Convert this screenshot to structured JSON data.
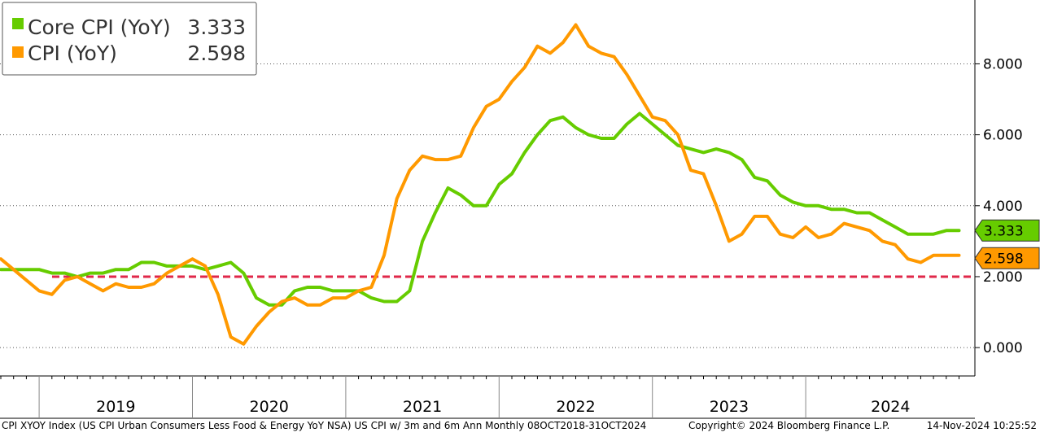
{
  "chart_data": {
    "type": "line",
    "x_start": "2018-10",
    "x_end": "2024-10",
    "series": [
      {
        "name": "Core CPI (YoY)",
        "last_value": "3.333",
        "color": "#66cc00",
        "values": [
          2.2,
          2.2,
          2.2,
          2.2,
          2.1,
          2.1,
          2.0,
          2.1,
          2.1,
          2.2,
          2.2,
          2.4,
          2.4,
          2.3,
          2.3,
          2.3,
          2.2,
          2.3,
          2.4,
          2.1,
          1.4,
          1.2,
          1.2,
          1.6,
          1.7,
          1.7,
          1.6,
          1.6,
          1.6,
          1.4,
          1.3,
          1.3,
          1.6,
          3.0,
          3.8,
          4.5,
          4.3,
          4.0,
          4.0,
          4.6,
          4.9,
          5.5,
          6.0,
          6.4,
          6.5,
          6.2,
          6.0,
          5.9,
          5.9,
          6.3,
          6.6,
          6.3,
          6.0,
          5.7,
          5.6,
          5.5,
          5.6,
          5.5,
          5.3,
          4.8,
          4.7,
          4.3,
          4.1,
          4.0,
          4.0,
          3.9,
          3.9,
          3.8,
          3.8,
          3.6,
          3.4,
          3.2,
          3.2,
          3.2,
          3.3,
          3.3
        ]
      },
      {
        "name": "CPI (YoY)",
        "last_value": "2.598",
        "color": "#ff9900",
        "values": [
          2.5,
          2.2,
          1.9,
          1.6,
          1.5,
          1.9,
          2.0,
          1.8,
          1.6,
          1.8,
          1.7,
          1.7,
          1.8,
          2.1,
          2.3,
          2.5,
          2.3,
          1.5,
          0.3,
          0.1,
          0.6,
          1.0,
          1.3,
          1.4,
          1.2,
          1.2,
          1.4,
          1.4,
          1.6,
          1.7,
          2.6,
          4.2,
          5.0,
          5.4,
          5.3,
          5.3,
          5.4,
          6.2,
          6.8,
          7.0,
          7.5,
          7.9,
          8.5,
          8.3,
          8.6,
          9.1,
          8.5,
          8.3,
          8.2,
          7.7,
          7.1,
          6.5,
          6.4,
          6.0,
          5.0,
          4.9,
          4.0,
          3.0,
          3.2,
          3.7,
          3.7,
          3.2,
          3.1,
          3.4,
          3.1,
          3.2,
          3.5,
          3.4,
          3.3,
          3.0,
          2.9,
          2.5,
          2.4,
          2.6,
          2.6,
          2.6
        ]
      }
    ],
    "reference_line": {
      "value": 2.0,
      "color": "#e0284a",
      "style": "dashed"
    },
    "y_ticks": [
      "0.000",
      "2.000",
      "4.000",
      "6.000",
      "8.000"
    ],
    "y_tick_values": [
      0,
      2,
      4,
      6,
      8
    ],
    "ylim": [
      -0.8,
      9.8
    ],
    "year_labels": [
      "2019",
      "2020",
      "2021",
      "2022",
      "2023",
      "2024"
    ],
    "grid": true,
    "legend_position": "top-left",
    "background": "#ffffff"
  },
  "legend": {
    "items": [
      {
        "label": "Core CPI (YoY)",
        "value": "3.333"
      },
      {
        "label": "CPI (YoY)",
        "value": "2.598"
      }
    ]
  },
  "footer": {
    "description": "CPI XYOY Index (US CPI Urban Consumers Less Food & Energy YoY NSA) US CPI w/ 3m and 6m Ann  Monthly 08OCT2018-31OCT2024",
    "copyright": "Copyright© 2024 Bloomberg Finance L.P.",
    "timestamp": "14-Nov-2024 10:25:52"
  }
}
